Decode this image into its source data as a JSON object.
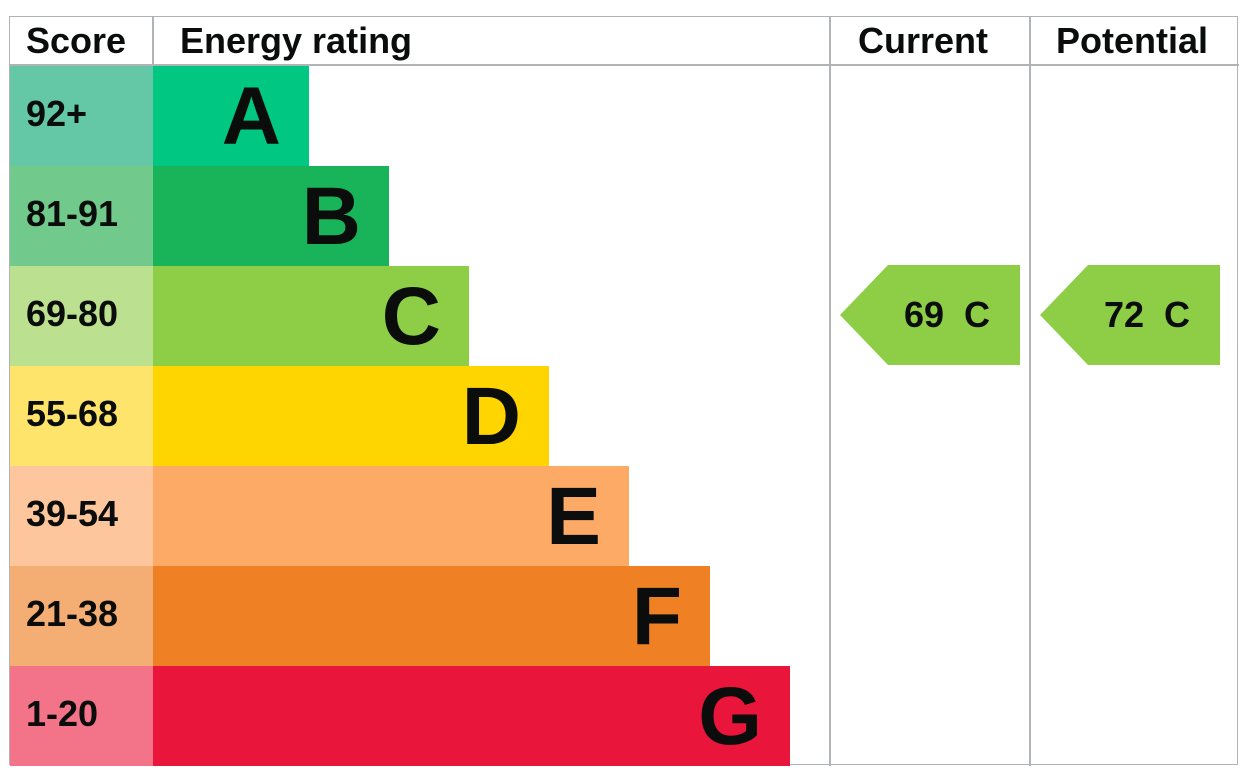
{
  "chart_data": {
    "type": "bar",
    "headers": {
      "score": "Score",
      "rating": "Energy rating",
      "current": "Current",
      "potential": "Potential"
    },
    "bands": [
      {
        "letter": "A",
        "score": "92+",
        "color": "#00c781",
        "score_color": "#64c7a5"
      },
      {
        "letter": "B",
        "score": "81-91",
        "color": "#19b459",
        "score_color": "#72c98c"
      },
      {
        "letter": "C",
        "score": "69-80",
        "color": "#8dce46",
        "score_color": "#bbe08f"
      },
      {
        "letter": "D",
        "score": "55-68",
        "color": "#ffd500",
        "score_color": "#ffe46b"
      },
      {
        "letter": "E",
        "score": "39-54",
        "color": "#fcaa65",
        "score_color": "#fdc69c"
      },
      {
        "letter": "F",
        "score": "21-38",
        "color": "#ef8023",
        "score_color": "#f4ad72"
      },
      {
        "letter": "G",
        "score": "1-20",
        "color": "#e9153b",
        "score_color": "#f37489"
      }
    ],
    "current": {
      "value": 69,
      "band": "C",
      "label": "69  C",
      "color": "#8dce46"
    },
    "potential": {
      "value": 72,
      "band": "C",
      "label": "72  C",
      "color": "#8dce46"
    }
  }
}
